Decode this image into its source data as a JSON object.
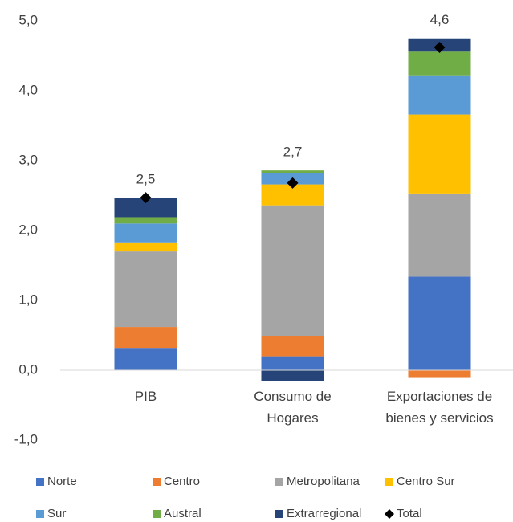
{
  "chart_data": {
    "type": "stacked_bar",
    "categories": [
      "PIB",
      "Consumo de\nHogares",
      "Exportaciones de\nbienes y servicios"
    ],
    "series": [
      {
        "name": "Norte",
        "color": "#4472c4",
        "values": [
          0.32,
          0.2,
          1.34
        ]
      },
      {
        "name": "Centro",
        "color": "#ed7d31",
        "values": [
          0.3,
          0.29,
          -0.11
        ]
      },
      {
        "name": "Metropolitana",
        "color": "#a5a5a5",
        "values": [
          1.08,
          1.87,
          1.19
        ]
      },
      {
        "name": "Centro Sur",
        "color": "#ffc000",
        "values": [
          0.13,
          0.3,
          1.13
        ]
      },
      {
        "name": "Sur",
        "color": "#5b9bd5",
        "values": [
          0.27,
          0.16,
          0.55
        ]
      },
      {
        "name": "Austral",
        "color": "#70ad47",
        "values": [
          0.09,
          0.04,
          0.35
        ]
      },
      {
        "name": "Extrarregional",
        "color": "#264478",
        "values": [
          0.28,
          -0.15,
          0.19
        ]
      }
    ],
    "total": {
      "name": "Total",
      "color": "#000000",
      "values": [
        2.47,
        2.68,
        4.62
      ],
      "value_labels": [
        "2,5",
        "2,7",
        "4,6"
      ]
    },
    "ylim": [
      -1,
      5
    ],
    "yticks": [
      {
        "value": -1,
        "label": "-1,0"
      },
      {
        "value": 0,
        "label": "0,0"
      },
      {
        "value": 1,
        "label": "1,0"
      },
      {
        "value": 2,
        "label": "2,0"
      },
      {
        "value": 3,
        "label": "3,0"
      },
      {
        "value": 4,
        "label": "4,0"
      },
      {
        "value": 5,
        "label": "5,0"
      }
    ],
    "grid": false
  }
}
